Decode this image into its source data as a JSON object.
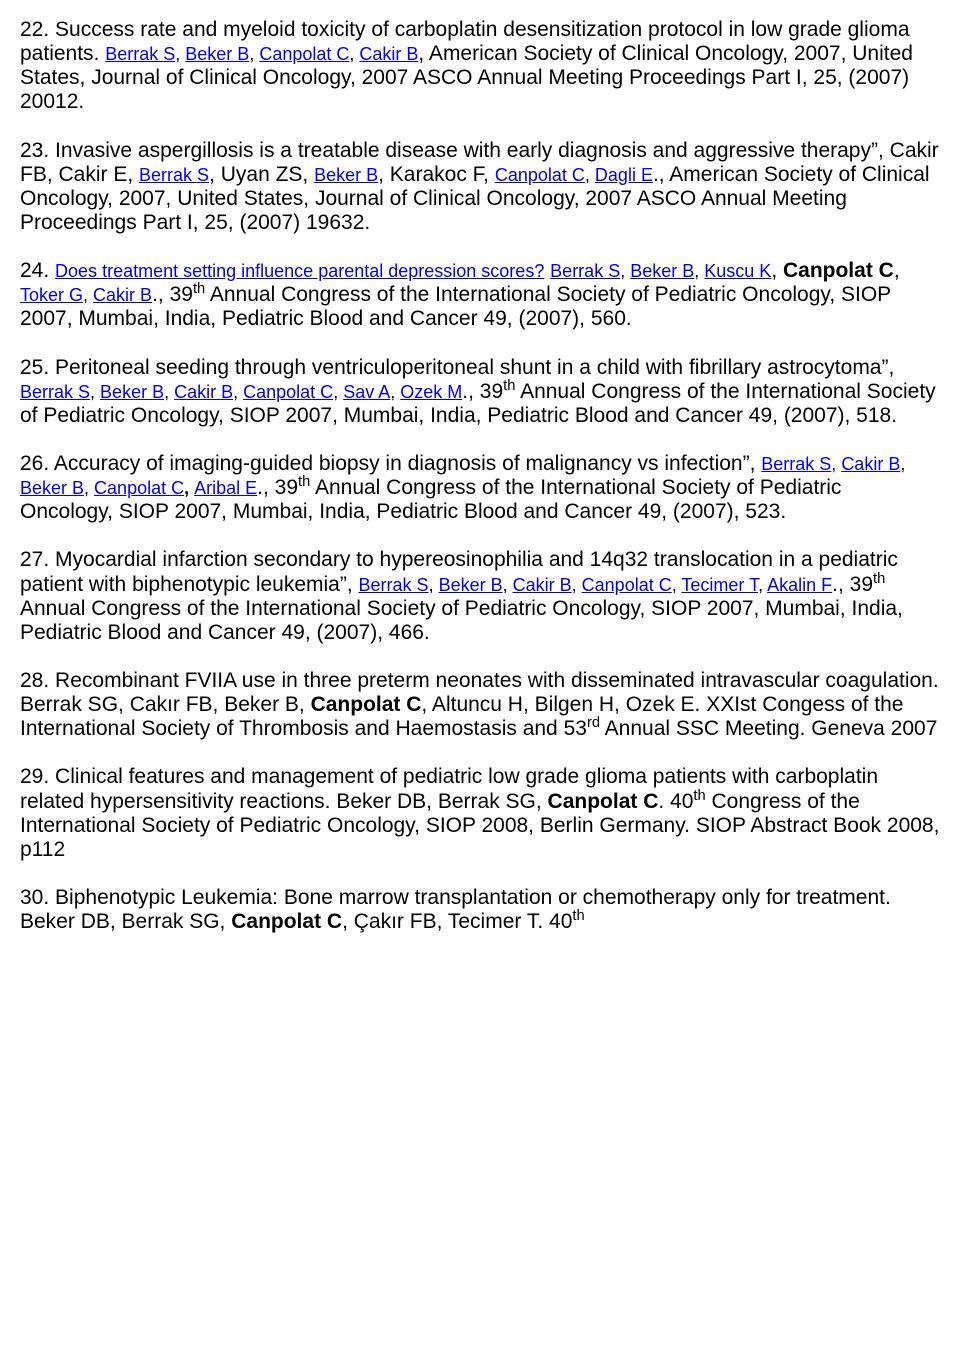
{
  "entries": {
    "e22": {
      "num": "22.",
      "title": "Success rate and myeloid toxicity of carboplatin desensitization protocol in low grade glioma patients",
      "authors": [
        "Berrak S",
        "Beker B",
        "Canpolat C",
        "Cakir B"
      ],
      "tail_a": ", American Society of Clinical Oncology, 2007, United States, Journal of Clinical Oncology, 2007 ASCO Annual Meeting Proceedings Part I, 25, (2007) 20012."
    },
    "e23": {
      "num": "23.",
      "title": "Invasive aspergillosis is a treatable disease with early diagnosis and aggressive therapy”, Cakir FB, Cakir E, ",
      "a1": "Berrak S",
      "mid1": ", Uyan ZS, ",
      "a2": "Beker B",
      "mid2": ", Karakoc F, ",
      "a3": "Canpolat C",
      "sep": ", ",
      "a4": "Dagli E",
      "tail": "., American Society of Clinical Oncology, 2007, United States, Journal of Clinical Oncology, 2007 ASCO Annual Meeting Proceedings Part I, 25, (2007) 19632."
    },
    "e24": {
      "num": "24.",
      "title": "Does treatment setting influence parental depression scores?",
      "a1": "Berrak S",
      "a2": "Beker B",
      "a3": "Kuscu K",
      "bold": "Canpolat C",
      "a4": "Toker G",
      "a5": "Cakir B",
      "tail": "., 39",
      "sup": "th",
      "tail2": " Annual Congress of the International Society of Pediatric Oncology, SIOP 2007, Mumbai, India, Pediatric Blood and Cancer 49, (2007), 560."
    },
    "e25": {
      "num": "25.",
      "title": "Peritoneal seeding through ventriculoperitoneal shunt in a child with fibrillary astrocytoma”, ",
      "a1": "Berrak S",
      "a2": "Beker B",
      "a3": "Cakir B",
      "a4": "Canpolat C",
      "a5": "Sav A",
      "a6": "Ozek M",
      "tail": "., 39",
      "sup": "th",
      "tail2": " Annual Congress of the International Society of Pediatric Oncology, SIOP 2007, Mumbai, India, Pediatric Blood and Cancer 49, (2007), 518."
    },
    "e26": {
      "num": "26.",
      "title": "Accuracy of imaging-guided biopsy in diagnosis of malignancy vs infection”, ",
      "a1": "Berrak S",
      "a2": "Cakir B",
      "a3": "Beker B",
      "a4": "Canpolat C",
      "a5": "Aribal E",
      "tail": "., 39",
      "sup": "th",
      "tail2": " Annual Congress of the International Society of Pediatric Oncology, SIOP 2007, Mumbai, India, Pediatric Blood and Cancer 49, (2007), 523."
    },
    "e27": {
      "num": "27.",
      "title": "Myocardial infarction secondary to hypereosinophilia and 14q32 translocation in a pediatric patient with biphenotypic leukemia”, ",
      "a1": "Berrak S",
      "a2": "Beker B",
      "a3": "Cakir B",
      "a4": "Canpolat C",
      "a5": "Tecimer T",
      "a6": "Akalin F",
      "tail": "., 39",
      "sup": "th",
      "tail2": " Annual Congress of the International Society of Pediatric Oncology, SIOP 2007, Mumbai, India, Pediatric Blood and Cancer 49, (2007), 466."
    },
    "e28": {
      "num": "28.",
      "text_a": "Recombinant FVIIA use in three preterm neonates with disseminated intravascular coagulation. Berrak SG, Cakır FB, Beker B, ",
      "bold": "Canpolat C",
      "text_b": ", Altuncu H, Bilgen H, Ozek E.  XXIst  Congess of the International Society of Thrombosis and Haemostasis and 53",
      "sup": "rd",
      "text_c": " Annual SSC Meeting. Geneva 2007"
    },
    "e29": {
      "num": "29.",
      "text_a": "Clinical features and management of pediatric low grade glioma patients with carboplatin related hypersensitivity reactions. Beker DB, Berrak SG, ",
      "bold": "Canpolat C",
      "text_b": ". 40",
      "sup": "th",
      "text_c": " Congress of the International Society of Pediatric Oncology, SIOP 2008, Berlin Germany. SIOP Abstract Book 2008, p112"
    },
    "e30": {
      "num": "30.",
      "text_a": "Biphenotypic Leukemia: Bone marrow transplantation or chemotherapy only for treatment. Beker DB, Berrak SG, ",
      "bold": "Canpolat C",
      "text_b": ", Çakır FB, Tecimer T. 40",
      "sup": "th"
    }
  }
}
